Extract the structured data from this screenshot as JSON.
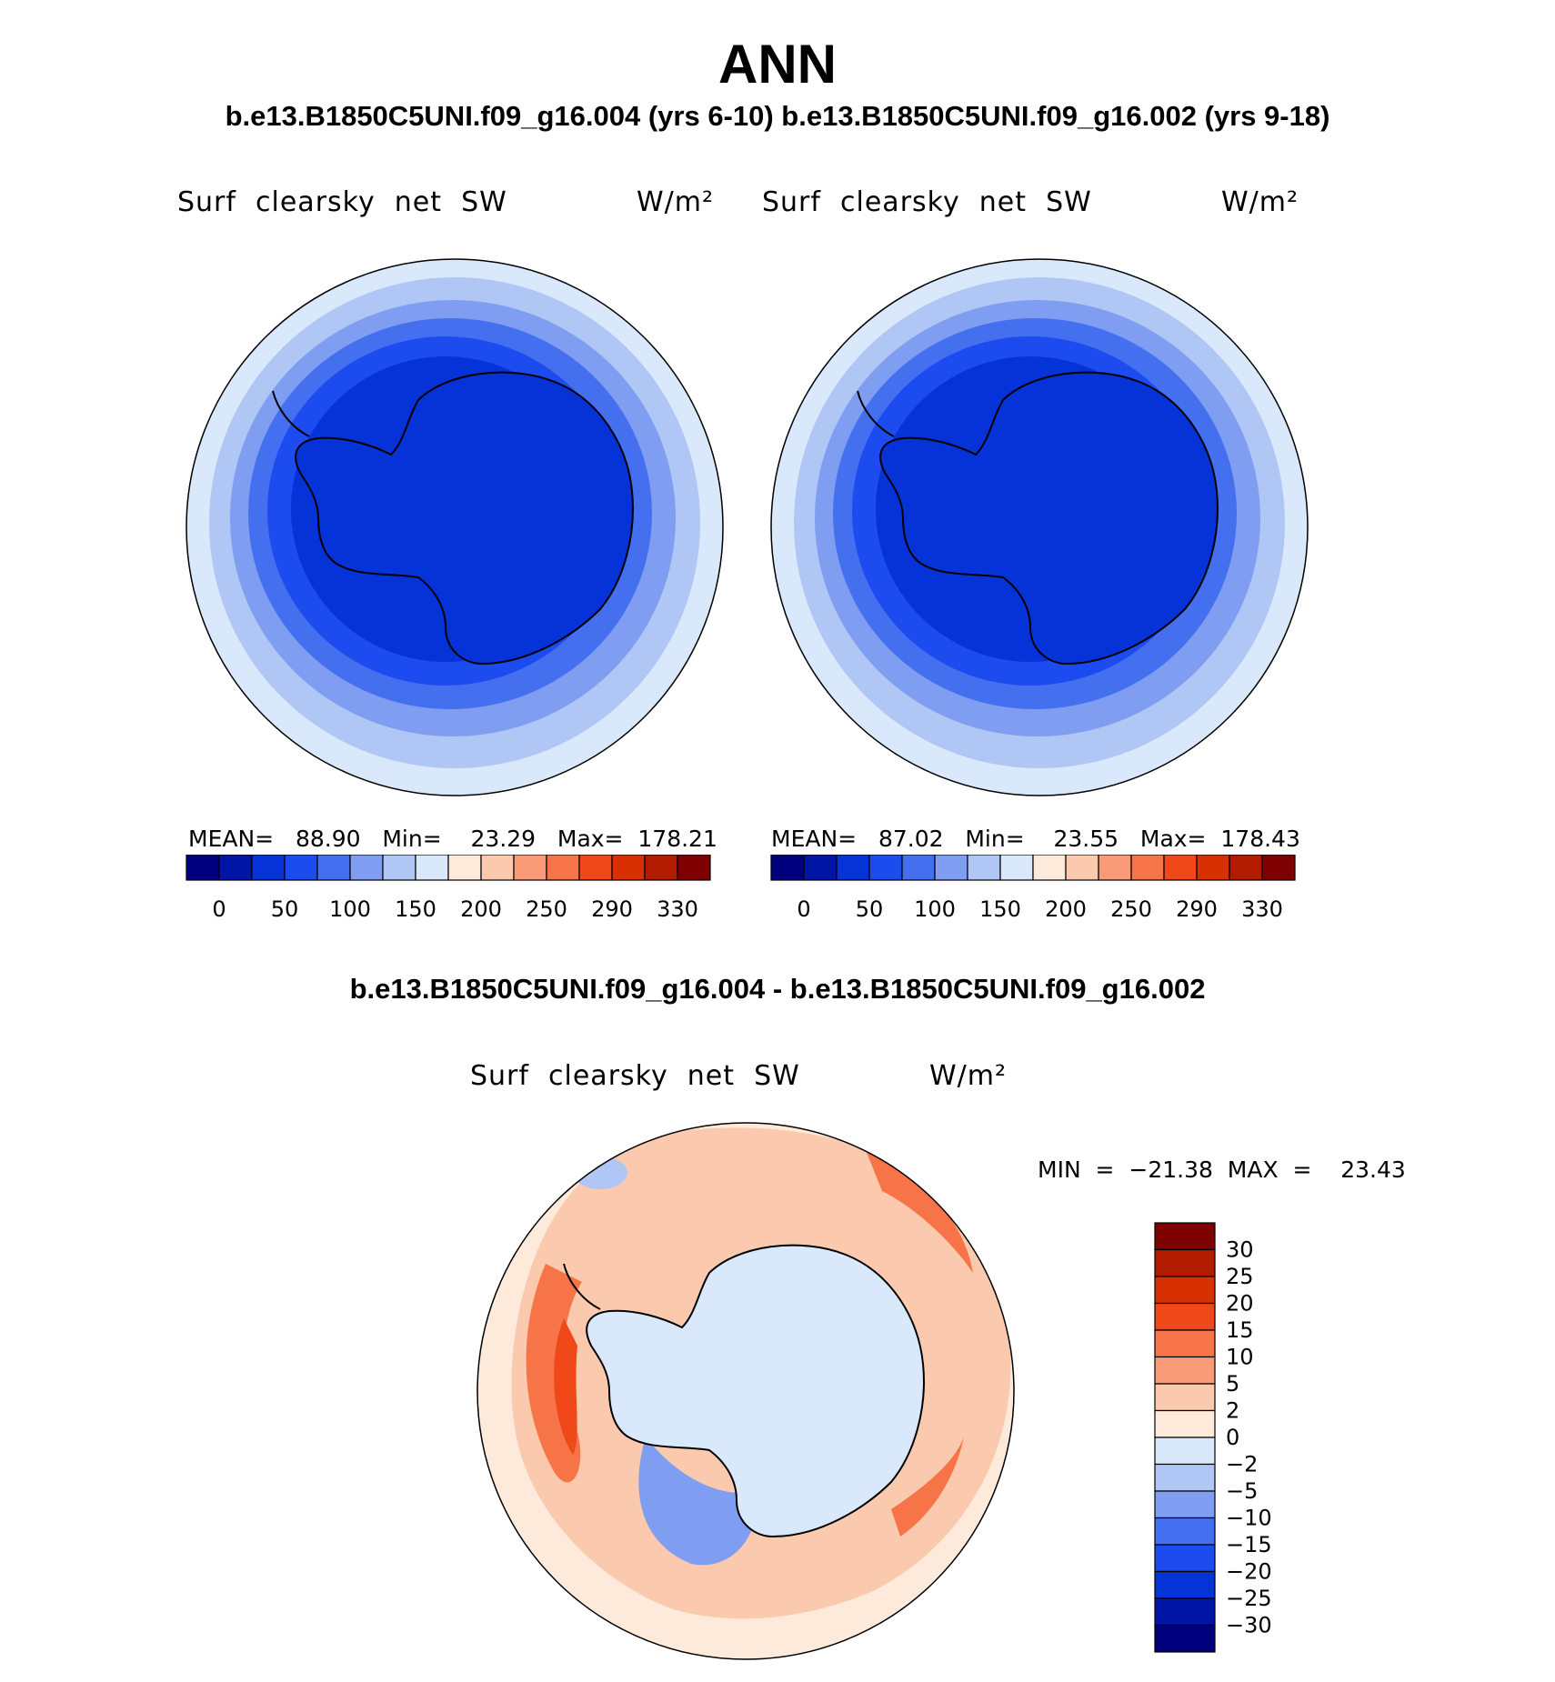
{
  "figure": {
    "title": "ANN",
    "subtitle_top": "b.e13.B1850C5UNI.f09_g16.004 (yrs 6-10) b.e13.B1850C5UNI.f09_g16.002 (yrs 9-18)",
    "subtitle_diff": "b.e13.B1850C5UNI.f09_g16.004 - b.e13.B1850C5UNI.f09_g16.002"
  },
  "panels": [
    {
      "variable": "Surf  clearsky  net  SW",
      "units": "W/m²",
      "stats": "MEAN=   88.90   Min=    23.29   Max=  178.21"
    },
    {
      "variable": "Surf  clearsky  net  SW",
      "units": "W/m²",
      "stats": "MEAN=   87.02   Min=    23.55   Max=  178.43"
    },
    {
      "variable": "Surf  clearsky  net  SW",
      "units": "W/m²",
      "stats": "MIN  =  −21.38  MAX  =    23.43"
    }
  ],
  "colors": {
    "abs_colorbar": [
      "#00007f",
      "#0015a6",
      "#0533d8",
      "#1c4cf0",
      "#4470f0",
      "#7f9ef2",
      "#b0c6f5",
      "#d9e8fb",
      "#fdeadb",
      "#fbc9ae",
      "#f99b78",
      "#f67448",
      "#f04818",
      "#d83003",
      "#b31b00",
      "#7f0000"
    ],
    "diff_colorbar": [
      "#00007f",
      "#0015a6",
      "#0533d8",
      "#1c4cf0",
      "#4470f0",
      "#7f9ef2",
      "#b0c6f5",
      "#d9e8fb",
      "#fdeadb",
      "#fbc9ae",
      "#f99b78",
      "#f67448",
      "#f04818",
      "#d83003",
      "#b31b00",
      "#7f0000"
    ]
  },
  "chart_data": [
    {
      "type": "heatmap",
      "projection": "south polar stereographic",
      "title": "Surf  clearsky  net  SW",
      "units": "W/m²",
      "case": "b.e13.B1850C5UNI.f09_g16.004 (yrs 6-10)",
      "mean": 88.9,
      "min": 23.29,
      "max": 178.21,
      "contour_levels": [
        0,
        25,
        50,
        75,
        100,
        125,
        150,
        175,
        200,
        225,
        250,
        270,
        290,
        310,
        330
      ],
      "colorbar_tick_labels": [
        "0",
        "50",
        "100",
        "150",
        "200",
        "250",
        "290",
        "330"
      ]
    },
    {
      "type": "heatmap",
      "projection": "south polar stereographic",
      "title": "Surf  clearsky  net  SW",
      "units": "W/m²",
      "case": "b.e13.B1850C5UNI.f09_g16.002 (yrs 9-18)",
      "mean": 87.02,
      "min": 23.55,
      "max": 178.43,
      "contour_levels": [
        0,
        25,
        50,
        75,
        100,
        125,
        150,
        175,
        200,
        225,
        250,
        270,
        290,
        310,
        330
      ],
      "colorbar_tick_labels": [
        "0",
        "50",
        "100",
        "150",
        "200",
        "250",
        "290",
        "330"
      ]
    },
    {
      "type": "heatmap",
      "projection": "south polar stereographic",
      "title": "Surf  clearsky  net  SW",
      "units": "W/m²",
      "case": "b.e13.B1850C5UNI.f09_g16.004 - b.e13.B1850C5UNI.f09_g16.002",
      "min": -21.38,
      "max": 23.43,
      "contour_levels": [
        30,
        25,
        20,
        15,
        10,
        5,
        2,
        0,
        -2,
        -5,
        -10,
        -15,
        -20,
        -25,
        -30
      ],
      "colorbar_tick_labels": [
        "30",
        "25",
        "20",
        "15",
        "10",
        "5",
        "2",
        "0",
        "−2",
        "−5",
        "−10",
        "−15",
        "−20",
        "−25",
        "−30"
      ]
    }
  ]
}
